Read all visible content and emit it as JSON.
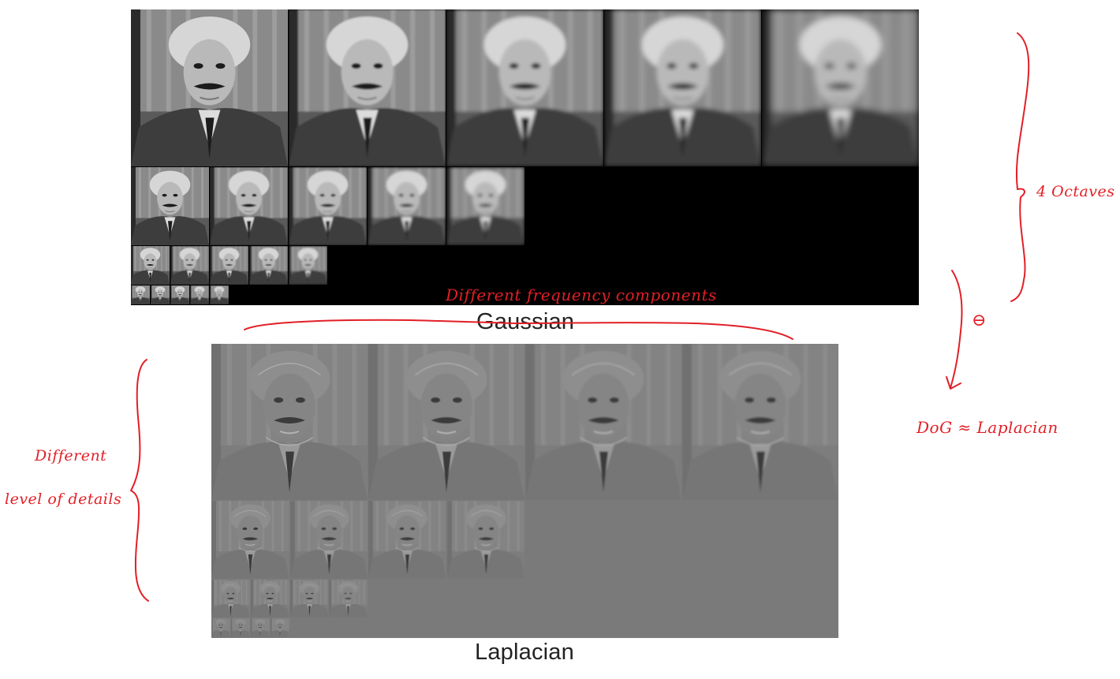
{
  "gaussian": {
    "caption": "Gaussian",
    "octaves": [
      {
        "images": 5,
        "tone": "photo"
      },
      {
        "images": 5,
        "tone": "photo"
      },
      {
        "images": 5,
        "tone": "photo"
      },
      {
        "images": 5,
        "tone": "photo"
      }
    ]
  },
  "laplacian": {
    "caption": "Laplacian",
    "octaves": [
      {
        "images": 4,
        "tone": "edges"
      },
      {
        "images": 4,
        "tone": "edges"
      },
      {
        "images": 4,
        "tone": "edges"
      },
      {
        "images": 4,
        "tone": "edges"
      }
    ]
  },
  "annotations": {
    "octaves_note": "4 Octaves",
    "frequency_note": "Different frequency components",
    "minus_symbol": "⊖",
    "dog_note": "DoG ≈ Laplacian",
    "details_note_line1": "Different",
    "details_note_line2": "level of details",
    "ink_color": "#e21f26"
  }
}
